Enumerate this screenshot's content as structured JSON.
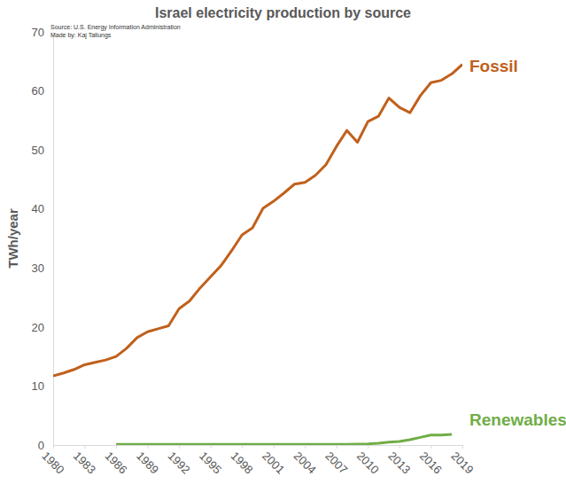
{
  "chart_data": {
    "type": "line",
    "title": "Israel electricity production by source",
    "annotations": [
      "Source: U.S. Energy Information Administration",
      "Made by: Kaj Tallungs"
    ],
    "y_label": "TWh/year",
    "x": [
      1980,
      1981,
      1982,
      1983,
      1984,
      1985,
      1986,
      1987,
      1988,
      1989,
      1990,
      1991,
      1992,
      1993,
      1994,
      1995,
      1996,
      1997,
      1998,
      1999,
      2000,
      2001,
      2002,
      2003,
      2004,
      2005,
      2006,
      2007,
      2008,
      2009,
      2010,
      2011,
      2012,
      2013,
      2014,
      2015,
      2016,
      2017,
      2018,
      2019
    ],
    "xlim": [
      1980,
      2019
    ],
    "xticks": [
      1980,
      1983,
      1986,
      1989,
      1992,
      1995,
      1998,
      2001,
      2004,
      2007,
      2010,
      2013,
      2016,
      2019
    ],
    "ylim": [
      0,
      70
    ],
    "yticks": [
      0,
      10,
      20,
      30,
      40,
      50,
      60,
      70
    ],
    "grid": false,
    "series": [
      {
        "name": "Fossil",
        "color": "#c0601c",
        "values": [
          11.7,
          12.2,
          12.8,
          13.6,
          14.0,
          14.4,
          15.0,
          16.4,
          18.2,
          19.2,
          19.7,
          20.2,
          23.1,
          24.4,
          26.6,
          28.5,
          30.4,
          32.9,
          35.6,
          36.8,
          40.1,
          41.3,
          42.7,
          44.2,
          44.5,
          45.7,
          47.5,
          50.6,
          53.3,
          51.3,
          54.8,
          55.7,
          58.8,
          57.2,
          56.3,
          59.2,
          61.4,
          61.8,
          62.9,
          64.5
        ]
      },
      {
        "name": "Renewables",
        "color": "#70ad47",
        "values": [
          null,
          null,
          null,
          null,
          null,
          null,
          0.1,
          0.1,
          0.1,
          0.1,
          0.1,
          0.1,
          0.1,
          0.1,
          0.1,
          0.1,
          0.1,
          0.1,
          0.1,
          0.1,
          0.1,
          0.1,
          0.1,
          0.1,
          0.1,
          0.1,
          0.1,
          0.1,
          0.1,
          0.15,
          0.2,
          0.3,
          0.5,
          0.6,
          0.9,
          1.3,
          1.7,
          1.7,
          1.8,
          null
        ]
      }
    ]
  }
}
